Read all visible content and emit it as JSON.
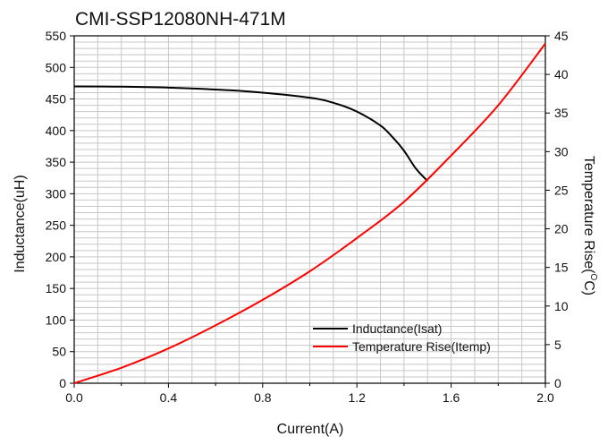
{
  "chart_data": {
    "type": "line",
    "title": "CMI-SSP12080NH-471M",
    "xlabel": "Current(A)",
    "ylabel": "Inductance(uH)",
    "y2label_main": "Temperature Rise(",
    "y2label_sup": "O",
    "y2label_end": "C)",
    "xlim": [
      0,
      2.0
    ],
    "ylim": [
      0,
      550
    ],
    "y2lim": [
      0,
      45
    ],
    "x_ticks": [
      0.0,
      0.4,
      0.8,
      1.2,
      1.6,
      2.0
    ],
    "x_tick_labels": [
      "0.0",
      "0.4",
      "0.8",
      "1.2",
      "1.6",
      "2.0"
    ],
    "y_ticks": [
      0,
      50,
      100,
      150,
      200,
      250,
      300,
      350,
      400,
      450,
      500,
      550
    ],
    "y_tick_labels": [
      "0",
      "50",
      "100",
      "150",
      "200",
      "250",
      "300",
      "350",
      "400",
      "450",
      "500",
      "550"
    ],
    "y2_ticks": [
      0,
      5,
      10,
      15,
      20,
      25,
      30,
      35,
      40,
      45
    ],
    "y2_tick_labels": [
      "0",
      "5",
      "10",
      "15",
      "20",
      "25",
      "30",
      "35",
      "40",
      "45"
    ],
    "grid": true,
    "legend_position": "bottom-right",
    "series": [
      {
        "name": "Inductance(Isat)",
        "axis": "left",
        "color": "#000000",
        "x": [
          0.0,
          0.2,
          0.4,
          0.6,
          0.8,
          1.0,
          1.1,
          1.2,
          1.3,
          1.35,
          1.4,
          1.45,
          1.5
        ],
        "y": [
          470,
          469.5,
          468,
          465,
          460,
          452,
          444,
          430,
          408,
          390,
          368,
          340,
          320
        ]
      },
      {
        "name": "Temperature Rise(Itemp)",
        "axis": "right",
        "color": "#ff0000",
        "x": [
          0.0,
          0.2,
          0.4,
          0.6,
          0.8,
          1.0,
          1.2,
          1.4,
          1.6,
          1.8,
          2.0
        ],
        "y": [
          0,
          2,
          4.5,
          7.5,
          10.8,
          14.5,
          18.8,
          23.5,
          29.5,
          36,
          44
        ]
      }
    ]
  }
}
